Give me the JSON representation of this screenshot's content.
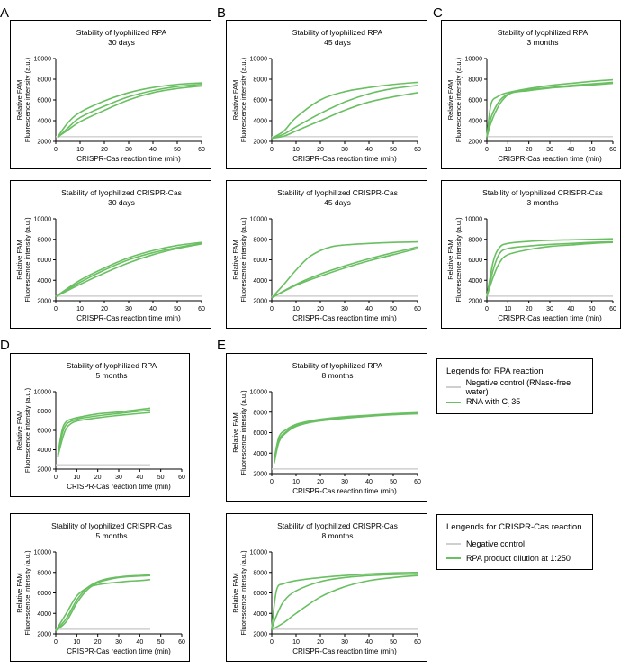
{
  "panel_letters": [
    "A",
    "B",
    "C",
    "D",
    "E"
  ],
  "styles": {
    "neg_color": "#cfcfcf",
    "rna_color": "#6abf62",
    "line_color": "#000000"
  },
  "axes": {
    "xlabel": "CRISPR-Cas reaction time (min)",
    "ylabel1": "Relative FAM",
    "ylabel2": "Fluorescence intensity (a.u.)",
    "ylim": [
      2000,
      10000
    ],
    "yticks": [
      "2000",
      "4000",
      "6000",
      "8000",
      "10000"
    ],
    "xticks60": [
      "0",
      "10",
      "20",
      "30",
      "40",
      "50",
      "60"
    ]
  },
  "legends": [
    {
      "title": "Legends for RPA reaction",
      "items": [
        {
          "label": "Negative control (RNase-free water)",
          "color": "#cfcfcf"
        },
        {
          "label_pre": "RNA with C",
          "label_sub": "t",
          "label_post": " 35",
          "color": "#6abf62"
        }
      ]
    },
    {
      "title": "Lengends for CRISPR-Cas reaction",
      "items": [
        {
          "label": "Negative control",
          "color": "#cfcfcf"
        },
        {
          "label": "RPA product dilution at 1:250",
          "color": "#6abf62"
        }
      ]
    }
  ],
  "chart_data": [
    {
      "type": "line",
      "title": "Stability of lyophilized RPA",
      "subtitle": "30 days",
      "xlim": [
        0,
        60
      ],
      "ylim": [
        2000,
        10000
      ],
      "negative": {
        "x": [
          0,
          60
        ],
        "y": [
          2450,
          2450
        ]
      },
      "series": [
        {
          "x": [
            1,
            5,
            10,
            20,
            30,
            40,
            50,
            60
          ],
          "y": [
            2500,
            3800,
            4800,
            5900,
            6700,
            7200,
            7500,
            7650
          ]
        },
        {
          "x": [
            1,
            5,
            10,
            20,
            30,
            40,
            50,
            60
          ],
          "y": [
            2400,
            3300,
            4300,
            5400,
            6300,
            6900,
            7300,
            7500
          ]
        },
        {
          "x": [
            1,
            5,
            10,
            20,
            30,
            40,
            50,
            60
          ],
          "y": [
            2450,
            3100,
            3900,
            5000,
            6000,
            6700,
            7100,
            7350
          ]
        }
      ]
    },
    {
      "type": "line",
      "title": "Stability of lyophilized RPA",
      "subtitle": "45 days",
      "xlim": [
        0,
        60
      ],
      "ylim": [
        2000,
        10000
      ],
      "negative": {
        "x": [
          0,
          60
        ],
        "y": [
          2450,
          2450
        ]
      },
      "series": [
        {
          "x": [
            0,
            5,
            10,
            20,
            30,
            40,
            50,
            60
          ],
          "y": [
            2300,
            3000,
            4300,
            6000,
            6800,
            7200,
            7500,
            7700
          ]
        },
        {
          "x": [
            0,
            5,
            10,
            20,
            30,
            40,
            50,
            60
          ],
          "y": [
            2300,
            2700,
            3400,
            4700,
            5800,
            6600,
            7100,
            7400
          ]
        },
        {
          "x": [
            0,
            5,
            10,
            20,
            30,
            40,
            50,
            60
          ],
          "y": [
            2300,
            2500,
            3000,
            4000,
            5000,
            5800,
            6300,
            6700
          ]
        }
      ]
    },
    {
      "type": "line",
      "title": "Stability of lyophilized RPA",
      "subtitle": "3 months",
      "xlim": [
        0,
        60
      ],
      "ylim": [
        2000,
        10000
      ],
      "negative": {
        "x": [
          0,
          60
        ],
        "y": [
          2450,
          2450
        ]
      },
      "series": [
        {
          "x": [
            0,
            2,
            5,
            8,
            12,
            20,
            30,
            40,
            50,
            60
          ],
          "y": [
            2400,
            5600,
            6300,
            6600,
            6800,
            7100,
            7400,
            7600,
            7800,
            7950
          ]
        },
        {
          "x": [
            0,
            2,
            5,
            8,
            12,
            20,
            30,
            40,
            50,
            60
          ],
          "y": [
            2400,
            4300,
            5600,
            6300,
            6700,
            7000,
            7200,
            7400,
            7550,
            7700
          ]
        },
        {
          "x": [
            0,
            2,
            5,
            8,
            12,
            20,
            30,
            40,
            50,
            60
          ],
          "y": [
            2400,
            3800,
            5200,
            6100,
            6700,
            6900,
            7150,
            7300,
            7450,
            7600
          ]
        }
      ]
    },
    {
      "type": "line",
      "title": "Stability of lyophilized CRISPR-Cas",
      "subtitle": "30 days",
      "xlim": [
        0,
        60
      ],
      "ylim": [
        2000,
        10000
      ],
      "negative": {
        "x": [
          0,
          60
        ],
        "y": [
          2450,
          2450
        ]
      },
      "series": [
        {
          "x": [
            0,
            10,
            20,
            30,
            40,
            50,
            60
          ],
          "y": [
            2400,
            4000,
            5200,
            6200,
            6900,
            7400,
            7700
          ]
        },
        {
          "x": [
            0,
            10,
            20,
            30,
            40,
            50,
            60
          ],
          "y": [
            2400,
            3800,
            5000,
            6000,
            6700,
            7200,
            7600
          ]
        },
        {
          "x": [
            0,
            10,
            20,
            30,
            40,
            50,
            60
          ],
          "y": [
            2400,
            3600,
            4700,
            5700,
            6500,
            7100,
            7550
          ]
        }
      ]
    },
    {
      "type": "line",
      "title": "Stability of lyophilized CRISPR-Cas",
      "subtitle": "45 days",
      "xlim": [
        0,
        60
      ],
      "ylim": [
        2000,
        10000
      ],
      "negative": {
        "x": [
          0,
          60
        ],
        "y": [
          2450,
          2450
        ]
      },
      "series": [
        {
          "x": [
            0,
            5,
            10,
            15,
            20,
            25,
            30,
            40,
            50,
            60
          ],
          "y": [
            2300,
            3600,
            5000,
            6200,
            6900,
            7300,
            7450,
            7600,
            7700,
            7750
          ]
        },
        {
          "x": [
            0,
            10,
            20,
            30,
            40,
            50,
            60
          ],
          "y": [
            2300,
            3600,
            4600,
            5400,
            6100,
            6700,
            7250
          ]
        },
        {
          "x": [
            0,
            10,
            20,
            30,
            40,
            50,
            60
          ],
          "y": [
            2300,
            3500,
            4400,
            5200,
            5900,
            6500,
            7100
          ]
        }
      ]
    },
    {
      "type": "line",
      "title": "Stability of lyophilized CRISPR-Cas",
      "subtitle": "3 months",
      "xlim": [
        0,
        60
      ],
      "ylim": [
        2000,
        10000
      ],
      "negative": {
        "x": [
          0,
          60
        ],
        "y": [
          2450,
          2450
        ]
      },
      "series": [
        {
          "x": [
            0,
            3,
            6,
            10,
            20,
            30,
            40,
            50,
            60
          ],
          "y": [
            2400,
            5800,
            7200,
            7600,
            7800,
            7900,
            7950,
            8000,
            8050
          ]
        },
        {
          "x": [
            0,
            3,
            6,
            10,
            20,
            30,
            40,
            50,
            60
          ],
          "y": [
            2400,
            5000,
            6600,
            7100,
            7350,
            7500,
            7600,
            7700,
            7750
          ]
        },
        {
          "x": [
            0,
            3,
            6,
            10,
            20,
            30,
            40,
            50,
            60
          ],
          "y": [
            2400,
            4300,
            5700,
            6500,
            7000,
            7300,
            7450,
            7600,
            7700
          ]
        }
      ]
    },
    {
      "type": "line",
      "title": "Stability of lyophilized RPA",
      "subtitle": "5 months",
      "xlim": [
        0,
        60
      ],
      "ylim": [
        2000,
        10000
      ],
      "negative": {
        "x": [
          0,
          45
        ],
        "y": [
          2450,
          2450
        ]
      },
      "series": [
        {
          "x": [
            1,
            3,
            5,
            8,
            12,
            20,
            30,
            45
          ],
          "y": [
            3500,
            6000,
            6900,
            7200,
            7400,
            7700,
            7900,
            8300
          ]
        },
        {
          "x": [
            1,
            3,
            5,
            8,
            12,
            20,
            30,
            45
          ],
          "y": [
            3300,
            5600,
            6600,
            7000,
            7250,
            7500,
            7750,
            8100
          ]
        },
        {
          "x": [
            1,
            3,
            5,
            8,
            12,
            20,
            30,
            45
          ],
          "y": [
            3300,
            5000,
            6200,
            6800,
            7050,
            7300,
            7550,
            7850
          ]
        }
      ]
    },
    {
      "type": "line",
      "title": "Stability of lyophilized RPA",
      "subtitle": "8 months",
      "xlim": [
        0,
        60
      ],
      "ylim": [
        2000,
        10000
      ],
      "negative": {
        "x": [
          0,
          60
        ],
        "y": [
          2450,
          2450
        ]
      },
      "series": [
        {
          "x": [
            1,
            3,
            6,
            10,
            15,
            20,
            30,
            40,
            50,
            60
          ],
          "y": [
            3400,
            5600,
            6300,
            6800,
            7100,
            7300,
            7550,
            7700,
            7850,
            7950
          ]
        },
        {
          "x": [
            1,
            3,
            6,
            10,
            15,
            20,
            30,
            40,
            50,
            60
          ],
          "y": [
            3200,
            5300,
            6100,
            6700,
            7000,
            7200,
            7450,
            7650,
            7800,
            7900
          ]
        },
        {
          "x": [
            1,
            3,
            6,
            10,
            15,
            20,
            30,
            40,
            50,
            60
          ],
          "y": [
            3000,
            5100,
            6000,
            6600,
            6950,
            7150,
            7400,
            7600,
            7750,
            7850
          ]
        }
      ]
    },
    {
      "type": "line",
      "title": "Stability of lyophilized CRISPR-Cas",
      "subtitle": "5 months",
      "xlim": [
        0,
        60
      ],
      "ylim": [
        2000,
        10000
      ],
      "negative": {
        "x": [
          0,
          45
        ],
        "y": [
          2450,
          2450
        ]
      },
      "series": [
        {
          "x": [
            0,
            5,
            10,
            15,
            20,
            25,
            30,
            35,
            40,
            45
          ],
          "y": [
            2300,
            3200,
            5000,
            6300,
            7000,
            7300,
            7500,
            7600,
            7650,
            7700
          ]
        },
        {
          "x": [
            0,
            5,
            10,
            15,
            20,
            25,
            30,
            35,
            40,
            45
          ],
          "y": [
            2300,
            3500,
            5300,
            6500,
            7100,
            7400,
            7550,
            7650,
            7700,
            7750
          ]
        },
        {
          "x": [
            0,
            5,
            10,
            15,
            20,
            25,
            30,
            35,
            40,
            45
          ],
          "y": [
            2300,
            4000,
            5700,
            6500,
            6800,
            6950,
            7050,
            7150,
            7200,
            7300
          ]
        }
      ]
    },
    {
      "type": "line",
      "title": "Stability of lyophilized CRISPR-Cas",
      "subtitle": "8 months",
      "xlim": [
        0,
        60
      ],
      "ylim": [
        2000,
        10000
      ],
      "negative": {
        "x": [
          0,
          60
        ],
        "y": [
          2450,
          2450
        ]
      },
      "series": [
        {
          "x": [
            0,
            2,
            5,
            10,
            20,
            30,
            40,
            50,
            60
          ],
          "y": [
            2600,
            6300,
            6900,
            7200,
            7500,
            7700,
            7850,
            7950,
            8000
          ]
        },
        {
          "x": [
            0,
            2,
            5,
            10,
            20,
            30,
            40,
            50,
            60
          ],
          "y": [
            2500,
            3800,
            5200,
            6200,
            7100,
            7500,
            7700,
            7800,
            7850
          ]
        },
        {
          "x": [
            0,
            5,
            10,
            20,
            30,
            40,
            50,
            60
          ],
          "y": [
            2400,
            3100,
            4000,
            5600,
            6600,
            7200,
            7500,
            7700
          ]
        }
      ]
    }
  ]
}
